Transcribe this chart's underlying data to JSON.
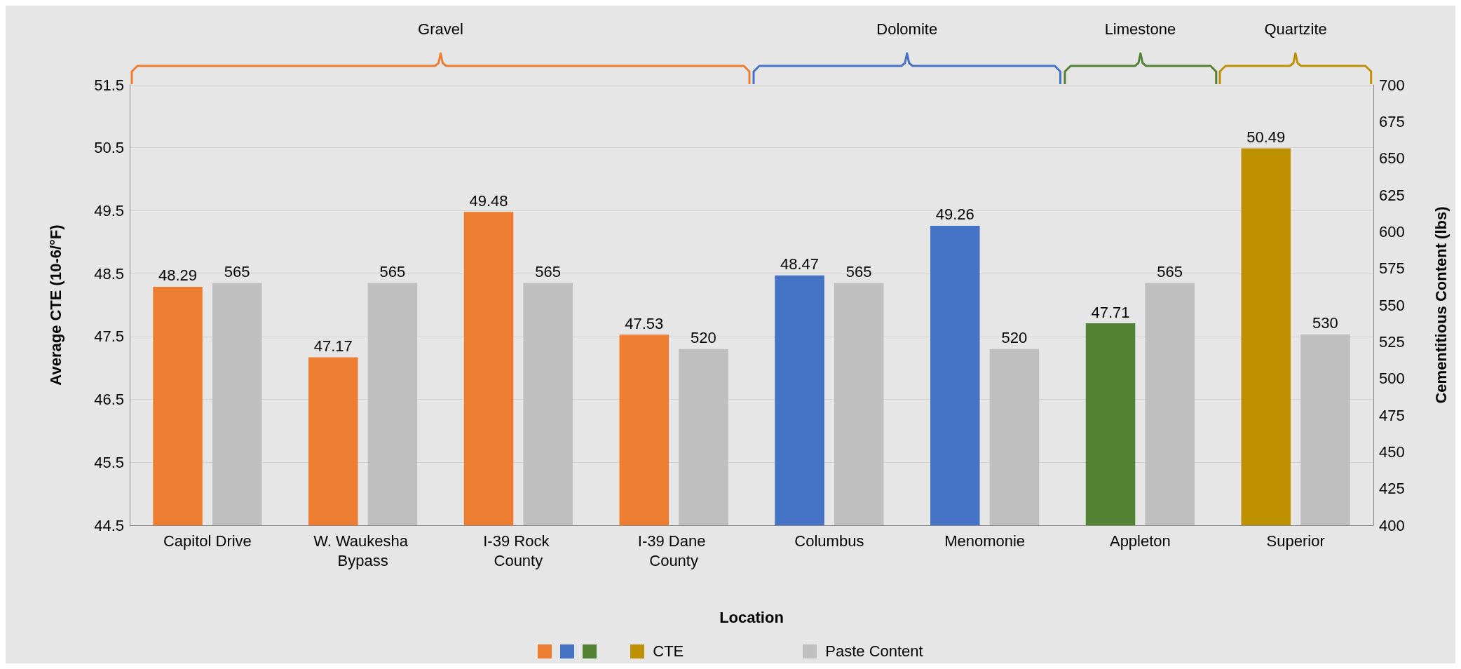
{
  "chart_data": {
    "type": "bar",
    "xlabel": "Location",
    "ylabel": "Average CTE (10-6/°F)",
    "y2label": "Cementitious Content (lbs)",
    "categories": [
      "Capitol Drive",
      "W. Waukesha Bypass",
      "I-39 Rock County",
      "I-39 Dane County",
      "Columbus",
      "Menomonie",
      "Appleton",
      "Superior"
    ],
    "series": [
      {
        "name": "CTE",
        "colors": [
          "#ed7d31",
          "#ed7d31",
          "#ed7d31",
          "#ed7d31",
          "#4472c4",
          "#4472c4",
          "#548235",
          "#bf9000"
        ],
        "values": [
          48.29,
          47.17,
          49.48,
          47.53,
          48.47,
          49.26,
          47.71,
          50.49
        ]
      },
      {
        "name": "Paste Content",
        "color": "#bfbfbf",
        "axis": "y2",
        "values": [
          565,
          565,
          565,
          520,
          565,
          520,
          565,
          530
        ]
      }
    ],
    "annotations": [
      "Gravel",
      "Dolomite",
      "Limestone",
      "Quartzite"
    ],
    "ylim": [
      44.5,
      51.5
    ],
    "yticks": [
      44.5,
      45.5,
      46.5,
      47.5,
      48.5,
      49.5,
      50.5,
      51.5
    ],
    "y2lim": [
      400,
      700
    ],
    "y2ticks": [
      400,
      425,
      450,
      475,
      500,
      525,
      550,
      575,
      600,
      625,
      650,
      675,
      700
    ],
    "grid": "y",
    "data_labels": true,
    "legend": "bottom"
  }
}
